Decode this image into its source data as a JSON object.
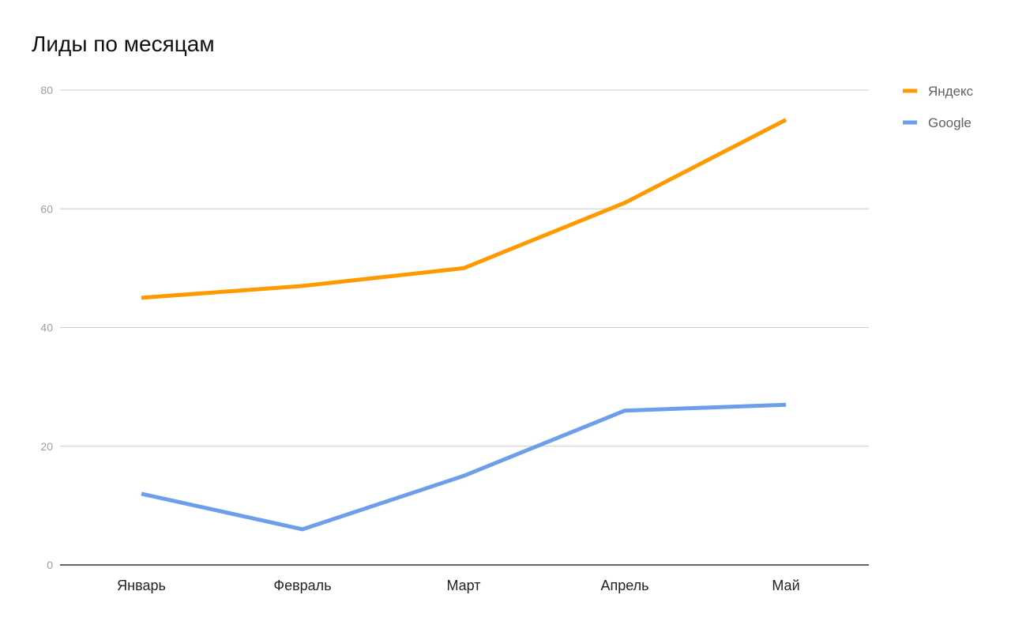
{
  "chart_data": {
    "type": "line",
    "title": "Лиды по месяцам",
    "xlabel": "",
    "ylabel": "",
    "categories": [
      "Январь",
      "Февраль",
      "Март",
      "Апрель",
      "Май"
    ],
    "y_ticks": [
      "0",
      "20",
      "40",
      "60",
      "80"
    ],
    "ylim": [
      0,
      80
    ],
    "grid": true,
    "legend_position": "right",
    "series": [
      {
        "name": "Яндекс",
        "color": "#ff9900",
        "values": [
          45,
          47,
          50,
          61,
          75
        ]
      },
      {
        "name": "Google",
        "color": "#6d9eeb",
        "values": [
          12,
          6,
          15,
          26,
          27
        ]
      }
    ]
  }
}
